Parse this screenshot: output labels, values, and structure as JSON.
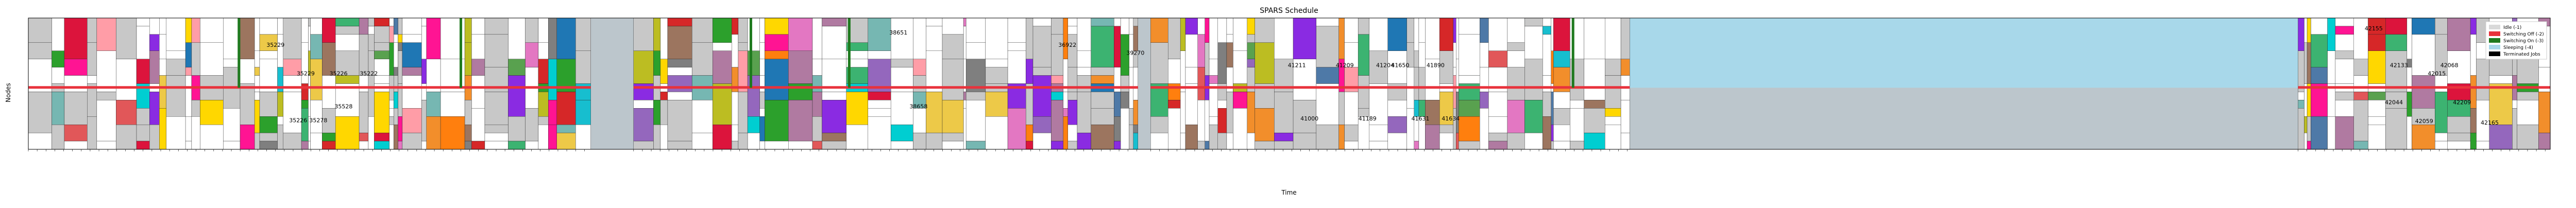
{
  "chart_data": {
    "type": "gantt",
    "title": "SPARS Schedule",
    "xlabel": "Time",
    "ylabel": "Nodes",
    "grid": false,
    "legend": {
      "placement": "top-right",
      "entries": [
        {
          "label": "Idle (-1)",
          "color": "#d9d9d9"
        },
        {
          "label": "Switching Off (-2)",
          "color": "#e8323c"
        },
        {
          "label": "Switching On (-3)",
          "color": "#1f7a1f"
        },
        {
          "label": "Sleeping (-4)",
          "color": "#a8d8ea"
        },
        {
          "label": "Terminated Jobs",
          "color": "#000000"
        }
      ]
    },
    "states": {
      "idle": "#bcc6cc",
      "sleeping": "#a8d8ea",
      "switching_off": "#e8323c",
      "switching_on": "#1f7a1f"
    },
    "job_palette": [
      "#4e79a7",
      "#f28e2b",
      "#e15759",
      "#76b7b2",
      "#59a14f",
      "#edc948",
      "#b07aa1",
      "#ff9da7",
      "#9c755f",
      "#2ca02c",
      "#d62728",
      "#9467bd",
      "#17becf",
      "#bcbd22",
      "#e377c2",
      "#1f77b4",
      "#ff7f0e",
      "#7f7f7f",
      "#3cb371",
      "#ff1493",
      "#ffd700",
      "#8a2be2",
      "#00ced1",
      "#dc143c"
    ],
    "visible_job_labels": [
      "35229",
      "35226",
      "35222",
      "35226",
      "35278",
      "35528",
      "35229",
      "38651",
      "38658",
      "39270",
      "41211",
      "41000",
      "41209",
      "41189",
      "41204",
      "41631",
      "41634",
      "41650",
      "41890",
      "42044",
      "42059",
      "42068",
      "42015",
      "42165",
      "42155",
      "42209",
      "42133",
      "36922"
    ],
    "activity_windows": [
      {
        "start": 0.0,
        "end": 22.3
      },
      {
        "start": 24.0,
        "end": 44.0
      },
      {
        "start": 44.5,
        "end": 63.5
      },
      {
        "start": 90.0,
        "end": 100.0
      }
    ],
    "sleep_windows": [
      {
        "start": 63.5,
        "end": 90.5
      }
    ],
    "xlim": [
      0,
      100
    ],
    "ylim": [
      0,
      16
    ]
  }
}
